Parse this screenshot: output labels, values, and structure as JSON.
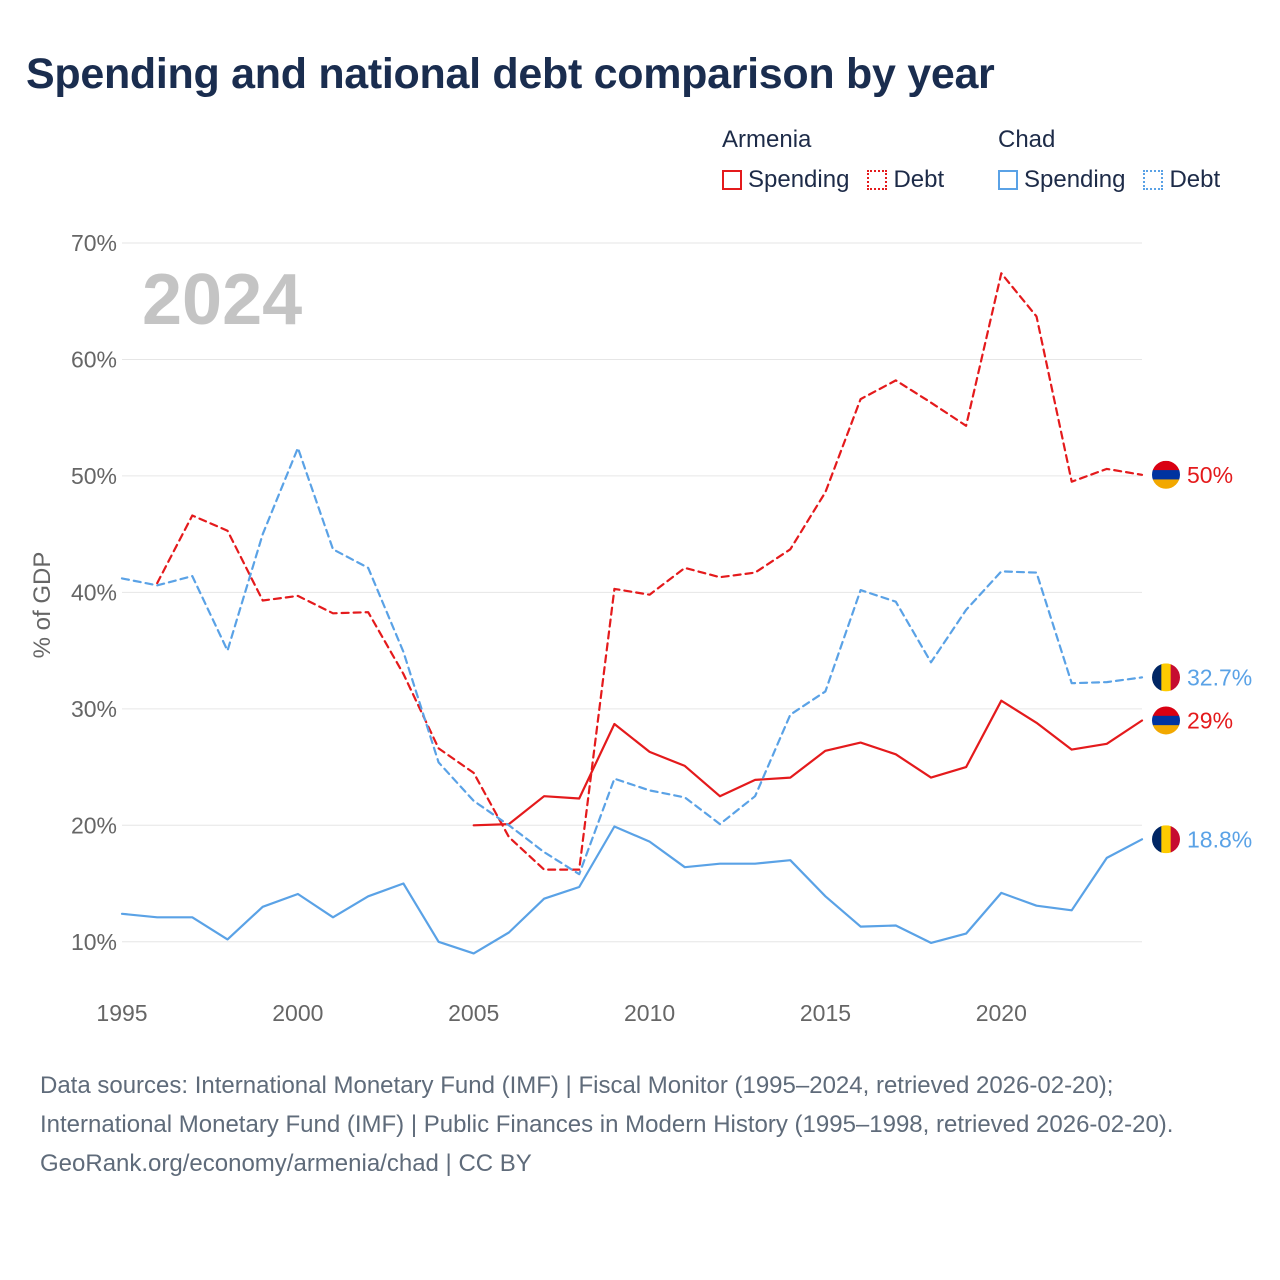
{
  "title": "Spending and national debt comparison by year",
  "legend": {
    "groups": [
      {
        "country": "Armenia",
        "color": "#e41a1c",
        "items": [
          "Spending",
          "Debt"
        ]
      },
      {
        "country": "Chad",
        "color": "#5aa2e6",
        "items": [
          "Spending",
          "Debt"
        ]
      }
    ]
  },
  "chart_data": {
    "type": "line",
    "title": "Spending and national debt comparison by year",
    "year_watermark": "2024",
    "xlabel": "",
    "ylabel": "% of GDP",
    "xlim": [
      1995,
      2024
    ],
    "ylim": [
      5,
      70
    ],
    "x_ticks": [
      1995,
      2000,
      2005,
      2010,
      2015,
      2020
    ],
    "x_tick_labels": [
      "1995",
      "2000",
      "2005",
      "2010",
      "2015",
      "2020"
    ],
    "y_ticks": [
      10,
      20,
      30,
      40,
      50,
      60,
      70
    ],
    "y_tick_labels": [
      "10%",
      "20%",
      "30%",
      "40%",
      "50%",
      "60%",
      "70%"
    ],
    "grid": true,
    "series": [
      {
        "name": "Armenia Debt",
        "country": "Armenia",
        "metric": "Debt",
        "style": "dashed",
        "color": "#e41a1c",
        "x": [
          1996,
          1997,
          1998,
          1999,
          2000,
          2001,
          2002,
          2003,
          2004,
          2005,
          2006,
          2007,
          2008,
          2009,
          2010,
          2011,
          2012,
          2013,
          2014,
          2015,
          2016,
          2017,
          2018,
          2019,
          2020,
          2021,
          2022,
          2023,
          2024
        ],
        "values": [
          40.8,
          46.6,
          45.3,
          39.3,
          39.7,
          38.2,
          38.3,
          33.0,
          26.6,
          24.5,
          19.0,
          16.2,
          16.2,
          40.3,
          39.8,
          42.1,
          41.3,
          41.7,
          43.7,
          48.6,
          56.6,
          58.2,
          56.3,
          54.3,
          67.4,
          63.7,
          49.5,
          50.6,
          50.1
        ]
      },
      {
        "name": "Armenia Spending",
        "country": "Armenia",
        "metric": "Spending",
        "style": "solid",
        "color": "#e41a1c",
        "x": [
          2005,
          2006,
          2007,
          2008,
          2009,
          2010,
          2011,
          2012,
          2013,
          2014,
          2015,
          2016,
          2017,
          2018,
          2019,
          2020,
          2021,
          2022,
          2023,
          2024
        ],
        "values": [
          20.0,
          20.1,
          22.5,
          22.3,
          28.7,
          26.3,
          25.1,
          22.5,
          23.9,
          24.1,
          26.4,
          27.1,
          26.1,
          24.1,
          25.0,
          30.7,
          28.8,
          26.5,
          27.0,
          29.0
        ]
      },
      {
        "name": "Chad Debt",
        "country": "Chad",
        "metric": "Debt",
        "style": "dashed",
        "color": "#5aa2e6",
        "x": [
          1995,
          1996,
          1997,
          1998,
          1999,
          2000,
          2001,
          2002,
          2003,
          2004,
          2005,
          2006,
          2007,
          2008,
          2009,
          2010,
          2011,
          2012,
          2013,
          2014,
          2015,
          2016,
          2017,
          2018,
          2019,
          2020,
          2021,
          2022,
          2023,
          2024
        ],
        "values": [
          41.2,
          40.6,
          41.4,
          35.0,
          45.0,
          52.4,
          43.7,
          42.1,
          34.9,
          25.4,
          22.1,
          20.0,
          17.7,
          15.8,
          24.0,
          23.0,
          22.4,
          20.1,
          22.5,
          29.5,
          31.5,
          40.2,
          39.2,
          34.0,
          38.5,
          41.8,
          41.7,
          32.2,
          32.3,
          32.7
        ]
      },
      {
        "name": "Chad Spending",
        "country": "Chad",
        "metric": "Spending",
        "style": "solid",
        "color": "#5aa2e6",
        "x": [
          1995,
          1996,
          1997,
          1998,
          1999,
          2000,
          2001,
          2002,
          2003,
          2004,
          2005,
          2006,
          2007,
          2008,
          2009,
          2010,
          2011,
          2012,
          2013,
          2014,
          2015,
          2016,
          2017,
          2018,
          2019,
          2020,
          2021,
          2022,
          2023,
          2024
        ],
        "values": [
          12.4,
          12.1,
          12.1,
          10.2,
          13.0,
          14.1,
          12.1,
          13.9,
          15.0,
          10.0,
          9.0,
          10.8,
          13.7,
          14.7,
          19.9,
          18.6,
          16.4,
          16.7,
          16.7,
          17.0,
          13.9,
          11.3,
          11.4,
          9.9,
          10.7,
          14.2,
          13.1,
          12.7,
          17.2,
          18.8
        ]
      }
    ],
    "end_labels": [
      {
        "series": "Armenia Debt",
        "text": "50%",
        "value": 50.1,
        "flag": "armenia",
        "color": "#e41a1c"
      },
      {
        "series": "Chad Debt",
        "text": "32.7%",
        "value": 32.7,
        "flag": "chad",
        "color": "#5aa2e6"
      },
      {
        "series": "Armenia Spending",
        "text": "29%",
        "value": 29.0,
        "flag": "armenia",
        "color": "#e41a1c"
      },
      {
        "series": "Chad Spending",
        "text": "18.8%",
        "value": 18.8,
        "flag": "chad",
        "color": "#5aa2e6"
      }
    ]
  },
  "footer": {
    "sources": "Data sources: International Monetary Fund (IMF) | Fiscal Monitor (1995–2024, retrieved 2026-02-20); International Monetary Fund (IMF) | Public Finances in Modern History (1995–1998, retrieved 2026-02-20).",
    "credit": "GeoRank.org/economy/armenia/chad | CC BY"
  }
}
